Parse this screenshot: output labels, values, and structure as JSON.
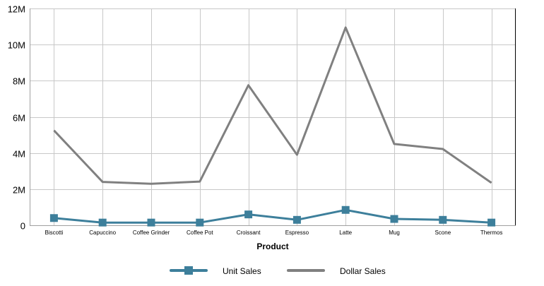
{
  "chart_data": {
    "type": "line",
    "title": "",
    "xlabel": "Product",
    "ylabel": "",
    "categories": [
      "Biscotti",
      "Capuccino",
      "Coffee Grinder",
      "Coffee Pot",
      "Croissant",
      "Espresso",
      "Latte",
      "Mug",
      "Scone",
      "Thermos"
    ],
    "ylim": [
      0,
      12000000
    ],
    "yticks": [
      0,
      2000000,
      4000000,
      6000000,
      8000000,
      10000000,
      12000000
    ],
    "ytick_labels": [
      "0",
      "2M",
      "4M",
      "6M",
      "8M",
      "10M",
      "12M"
    ],
    "grid": true,
    "legend_position": "bottom",
    "series": [
      {
        "name": "Unit Sales",
        "color": "#3d7f9b",
        "marker": "square",
        "values": [
          400000,
          150000,
          150000,
          150000,
          600000,
          300000,
          850000,
          350000,
          300000,
          150000
        ]
      },
      {
        "name": "Dollar Sales",
        "color": "#808080",
        "marker": "none",
        "values": [
          5250000,
          2400000,
          2300000,
          2420000,
          7750000,
          3900000,
          10950000,
          4500000,
          4220000,
          2350000
        ]
      }
    ]
  }
}
